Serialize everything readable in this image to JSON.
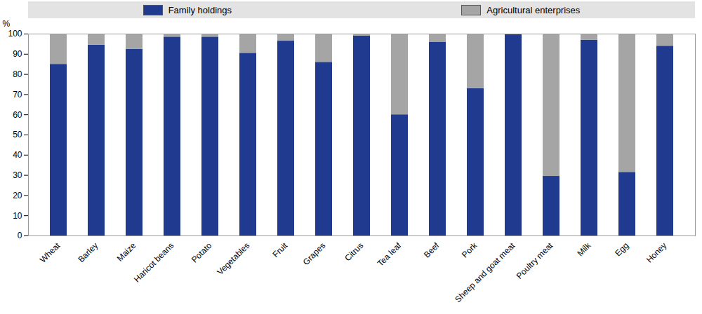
{
  "chart_data": {
    "type": "bar",
    "stacked": true,
    "legend": "top",
    "y_label": "%",
    "categories": [
      "Wheat",
      "Barley",
      "Maize",
      "Haricot beans",
      "Potato",
      "Vegetables",
      "Fruit",
      "Grapes",
      "Citrus",
      "Tea leaf",
      "Beef",
      "Pork",
      "Sheep and goat meat",
      "Poultry meat",
      "Milk",
      "Egg",
      "Honey"
    ],
    "series": [
      {
        "name": "Family holdings",
        "color": "#1f3a8f",
        "values": [
          85,
          94.5,
          92.5,
          98.5,
          98.5,
          90.5,
          96.5,
          86,
          99,
          60,
          96,
          73,
          99.8,
          29.5,
          97,
          31.5,
          94
        ]
      },
      {
        "name": "Agricultural enterprises",
        "color": "#a5a5a5",
        "values": [
          15,
          5.5,
          7.5,
          1.5,
          1.5,
          9.5,
          3.5,
          14,
          1,
          40,
          4,
          27,
          0.2,
          70.5,
          3,
          68.5,
          6
        ]
      }
    ],
    "ylim": [
      0,
      100
    ],
    "yticks": [
      0,
      10,
      20,
      30,
      40,
      50,
      60,
      70,
      80,
      90,
      100
    ],
    "grid": false
  }
}
